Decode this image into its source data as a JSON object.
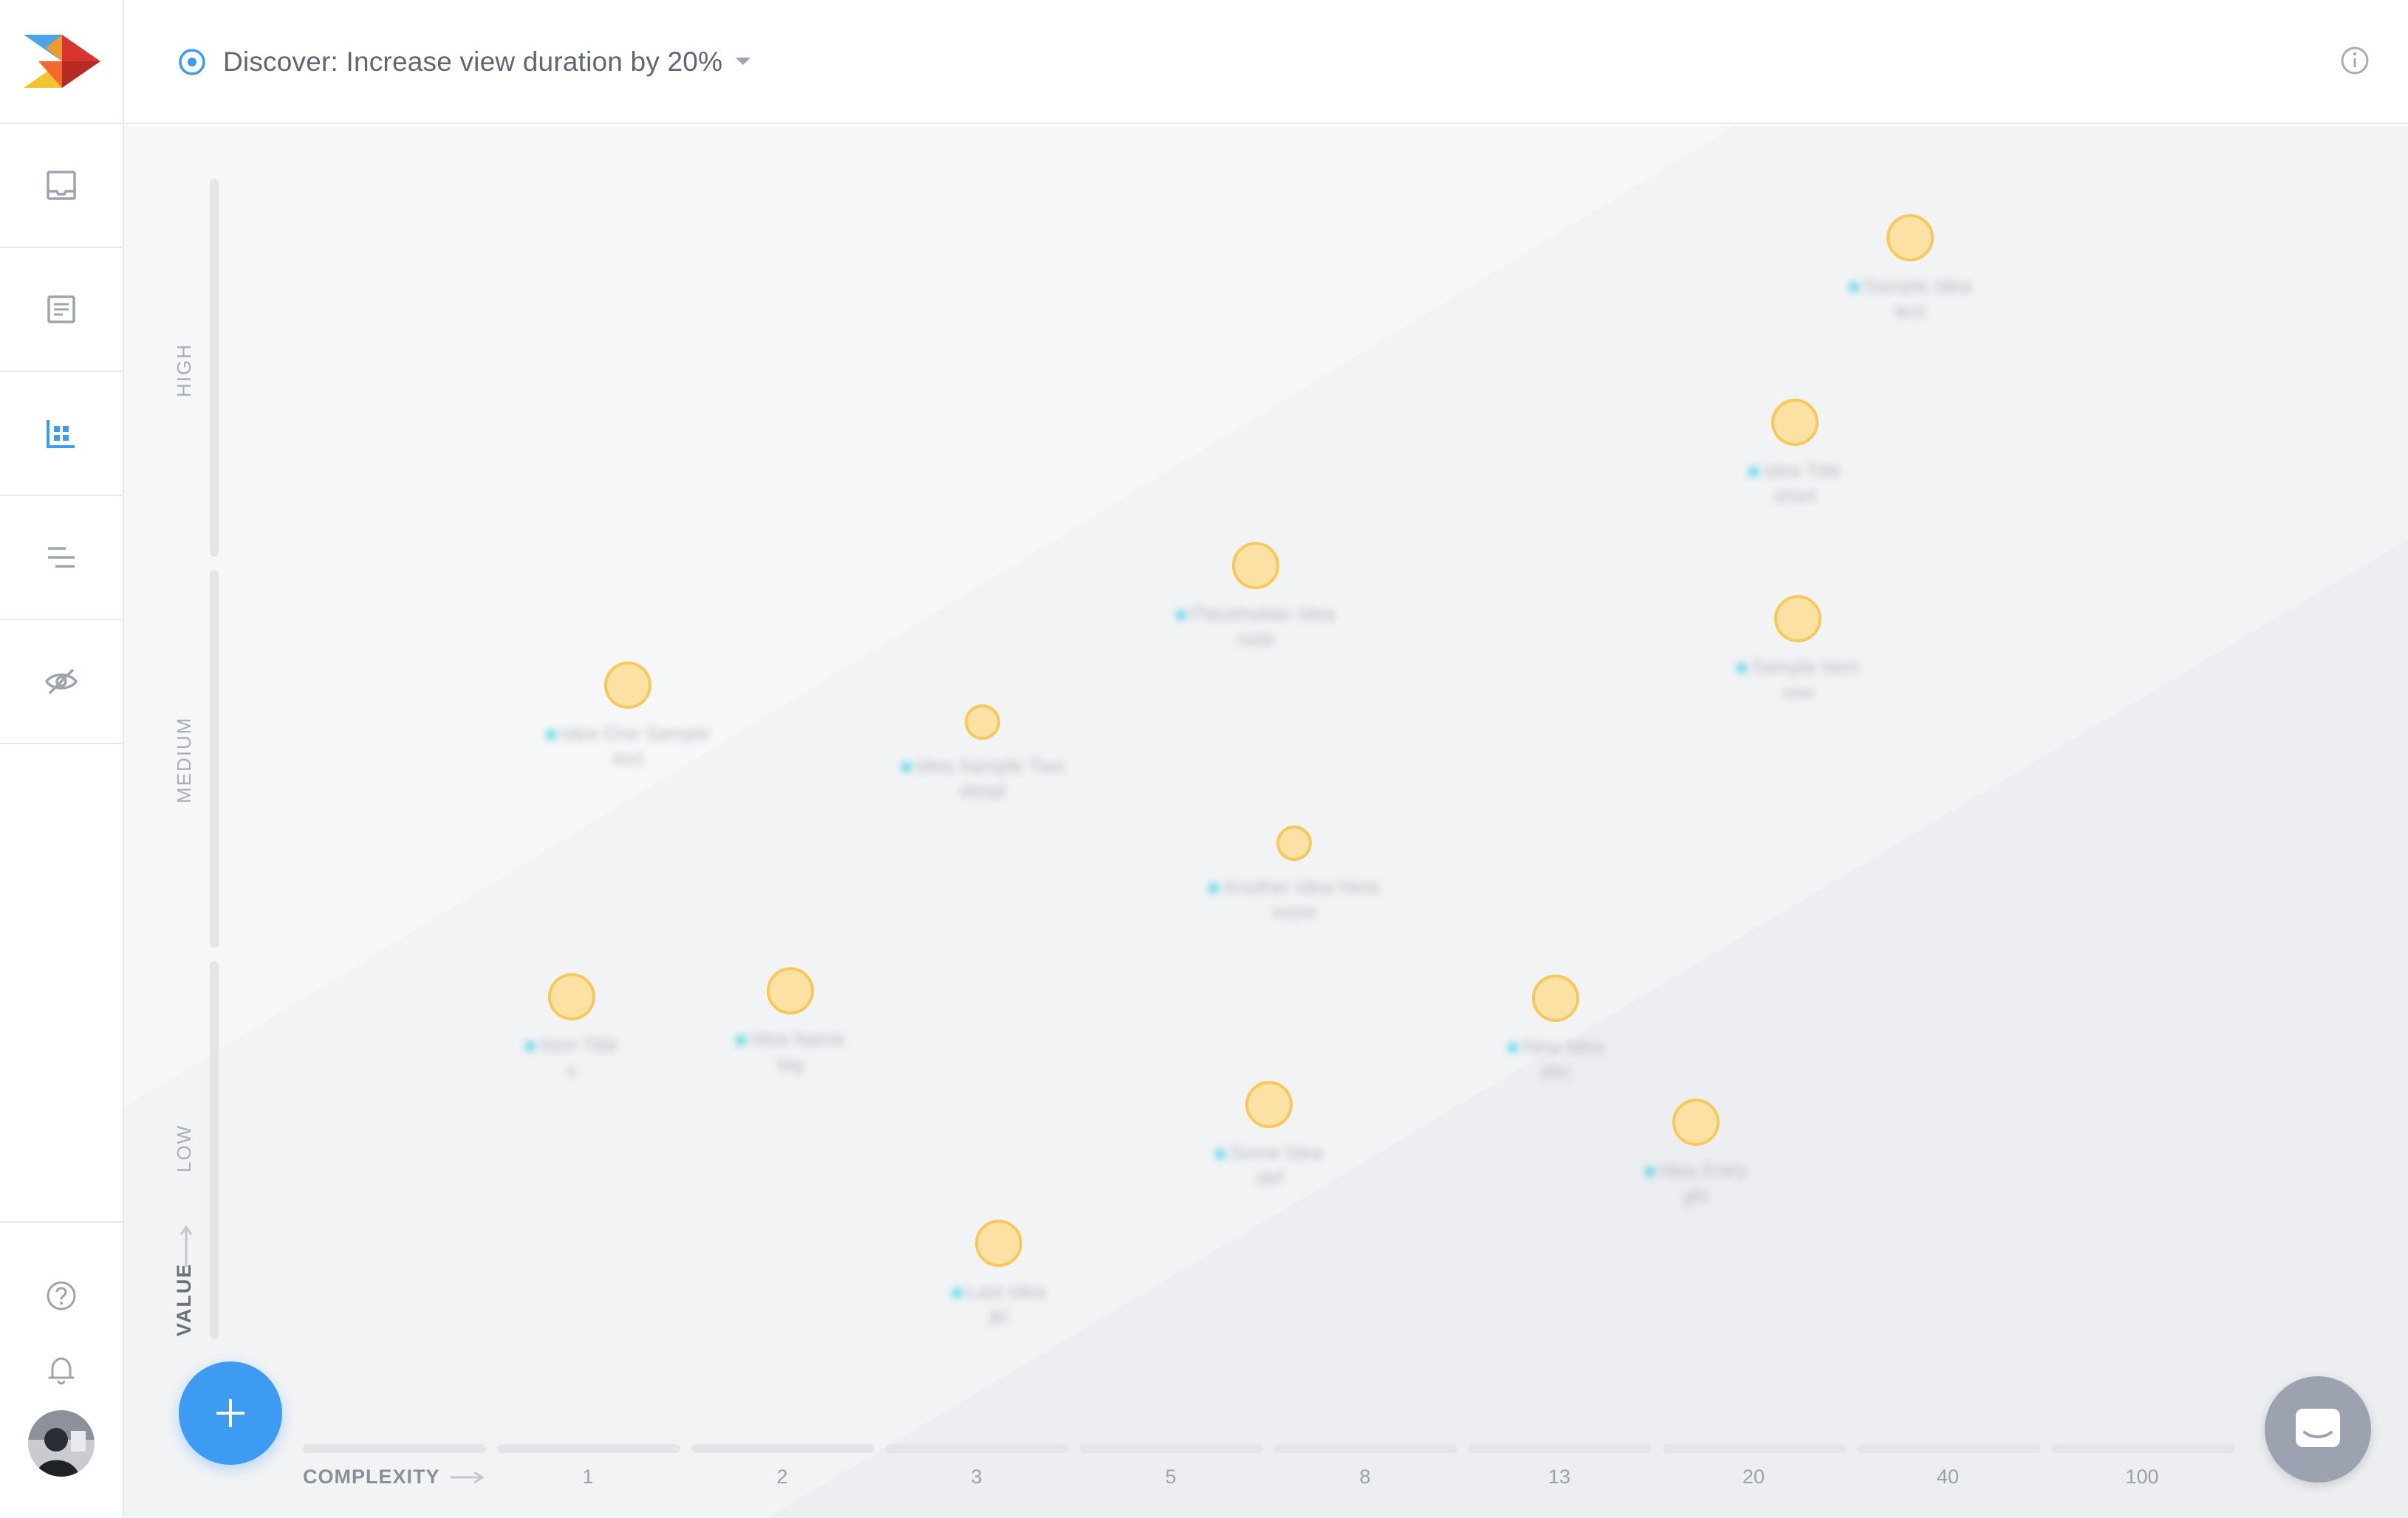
{
  "header": {
    "goal_title": "Discover: Increase view duration by 20%"
  },
  "sidebar": {
    "items": [
      {
        "name": "inbox-icon"
      },
      {
        "name": "document-icon"
      },
      {
        "name": "matrix-icon",
        "active": true
      },
      {
        "name": "roadmap-icon"
      },
      {
        "name": "hidden-icon"
      }
    ],
    "bottom": [
      {
        "name": "help-icon"
      },
      {
        "name": "bell-icon"
      }
    ]
  },
  "chart": {
    "y_axis_title": "VALUE",
    "y_levels": [
      "HIGH",
      "MEDIUM",
      "LOW"
    ],
    "x_axis_title": "COMPLEXITY",
    "x_ticks": [
      "1",
      "2",
      "3",
      "5",
      "8",
      "13",
      "20",
      "40",
      "100"
    ]
  },
  "ideas": [
    {
      "label": "Idea One Sample",
      "sub": "text"
    },
    {
      "label": "Idea Sample Two",
      "sub": "detail"
    },
    {
      "label": "Placeholder Idea",
      "sub": "note"
    },
    {
      "label": "Another Idea Here",
      "sub": "more"
    },
    {
      "label": "Idea Title",
      "sub": "short"
    },
    {
      "label": "Sample Item",
      "sub": "row"
    },
    {
      "label": "Sample Idea",
      "sub": "text"
    },
    {
      "label": "Item Title",
      "sub": "x"
    },
    {
      "label": "Idea Name",
      "sub": "tag"
    },
    {
      "label": "New Idea",
      "sub": "abc"
    },
    {
      "label": "Some Idea",
      "sub": "def"
    },
    {
      "label": "Idea Entry",
      "sub": "ghi"
    },
    {
      "label": "Last Idea",
      "sub": "jkl"
    }
  ],
  "colors": {
    "accent": "#3d9bf2",
    "idea_fill": "#fbe1a3",
    "idea_stroke": "#f7c85a",
    "marker": "#5fd8e6"
  }
}
